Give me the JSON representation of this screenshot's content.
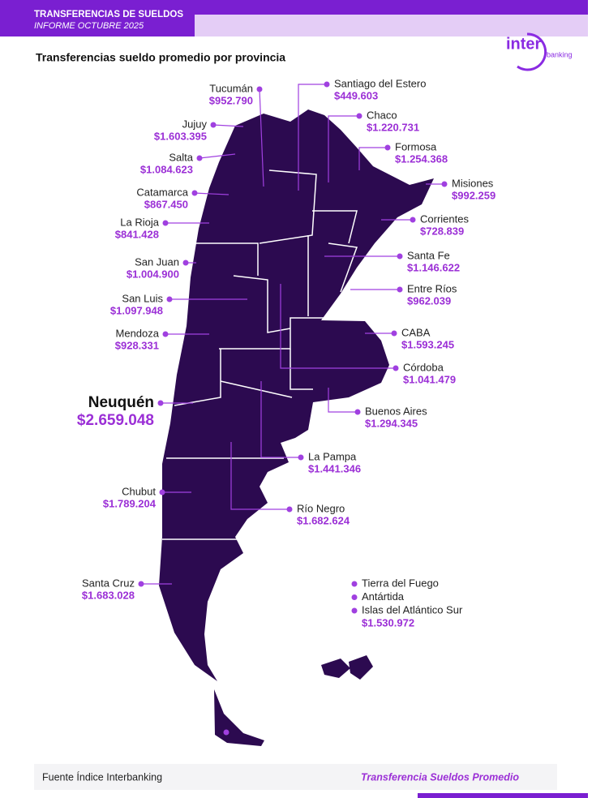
{
  "header": {
    "title": "TRANSFERENCIAS DE SUELDOS",
    "subtitle": "INFORME OCTUBRE 2025"
  },
  "logo": {
    "brand": "inter",
    "sub": "banking"
  },
  "title": "Transferencias sueldo promedio por provincia",
  "provinces": [
    {
      "name": "Tucumán",
      "amount": "$952.790"
    },
    {
      "name": "Jujuy",
      "amount": "$1.603.395"
    },
    {
      "name": "Salta",
      "amount": "$1.084.623"
    },
    {
      "name": "Catamarca",
      "amount": "$867.450"
    },
    {
      "name": "La Rioja",
      "amount": "$841.428"
    },
    {
      "name": "San Juan",
      "amount": "$1.004.900"
    },
    {
      "name": "San Luis",
      "amount": "$1.097.948"
    },
    {
      "name": "Mendoza",
      "amount": "$928.331"
    },
    {
      "name": "Neuquén",
      "amount": "$2.659.048"
    },
    {
      "name": "Chubut",
      "amount": "$1.789.204"
    },
    {
      "name": "Santa Cruz",
      "amount": "$1.683.028"
    },
    {
      "name": "Santiago del Estero",
      "amount": "$449.603"
    },
    {
      "name": "Chaco",
      "amount": "$1.220.731"
    },
    {
      "name": "Formosa",
      "amount": "$1.254.368"
    },
    {
      "name": "Misiones",
      "amount": "$992.259"
    },
    {
      "name": "Corrientes",
      "amount": "$728.839"
    },
    {
      "name": "Santa Fe",
      "amount": "$1.146.622"
    },
    {
      "name": "Entre Ríos",
      "amount": "$962.039"
    },
    {
      "name": "CABA",
      "amount": "$1.593.245"
    },
    {
      "name": "Córdoba",
      "amount": "$1.041.479"
    },
    {
      "name": "Buenos Aires",
      "amount": "$1.294.345"
    },
    {
      "name": "La Pampa",
      "amount": "$1.441.346"
    },
    {
      "name": "Río Negro",
      "amount": "$1.682.624"
    }
  ],
  "islands": {
    "names": [
      "Tierra del Fuego",
      "Antártida",
      "Islas del Atlántico Sur"
    ],
    "amount": "$1.530.972"
  },
  "footer": {
    "source": "Fuente Índice Interbanking",
    "label": "Transferencia Sueldos Promedio"
  }
}
